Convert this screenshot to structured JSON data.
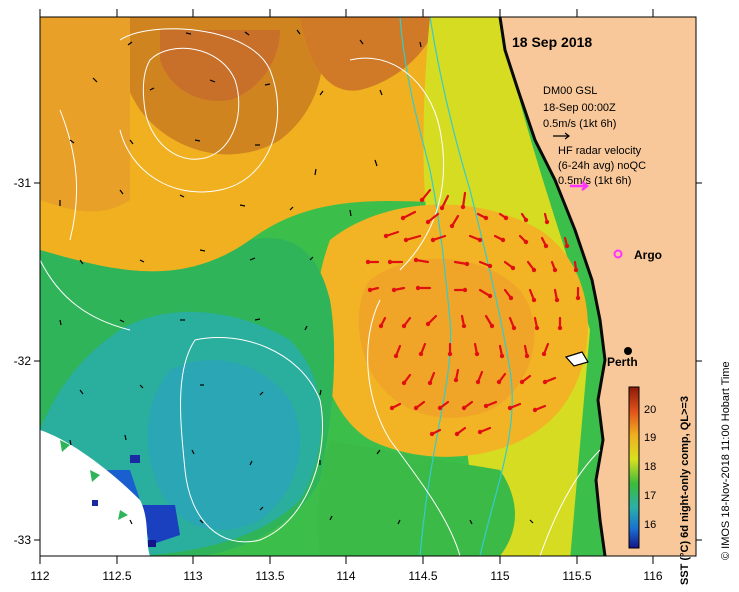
{
  "map": {
    "date_title": "18 Sep 2018",
    "model_legend": {
      "line1": "DM00 GSL",
      "line2": "18-Sep 00:00Z",
      "line3": "0.5m/s (1kt 6h)"
    },
    "radar_legend": {
      "line1": "HF radar velocity",
      "line2": "(6-24h avg) noQC",
      "line3": "0.5m/s (1kt 6h)"
    },
    "places": {
      "argo": "Argo",
      "perth": "Perth"
    },
    "x_ticks": [
      "112",
      "112.5",
      "113",
      "113.5",
      "114",
      "114.5",
      "115",
      "115.5",
      "116"
    ],
    "y_ticks": [
      "-31",
      "-32",
      "-33"
    ],
    "colorbar": {
      "label": "SST (°C) 6d night-only comp, QL>=3",
      "ticks": [
        "20",
        "19",
        "18",
        "17",
        "16"
      ]
    },
    "credit": "© IMOS 18-Nov-2018 11:00 Hobart Time",
    "colors": {
      "land": "#f8c89a",
      "model_arrow": "#000000",
      "radar_arrow": "#e01010",
      "argo": "#ff33ff",
      "radar_legend_arrow": "#ff33ff",
      "bathymetry": "#33cccc",
      "ssh_contour": "#ffffff"
    }
  }
}
